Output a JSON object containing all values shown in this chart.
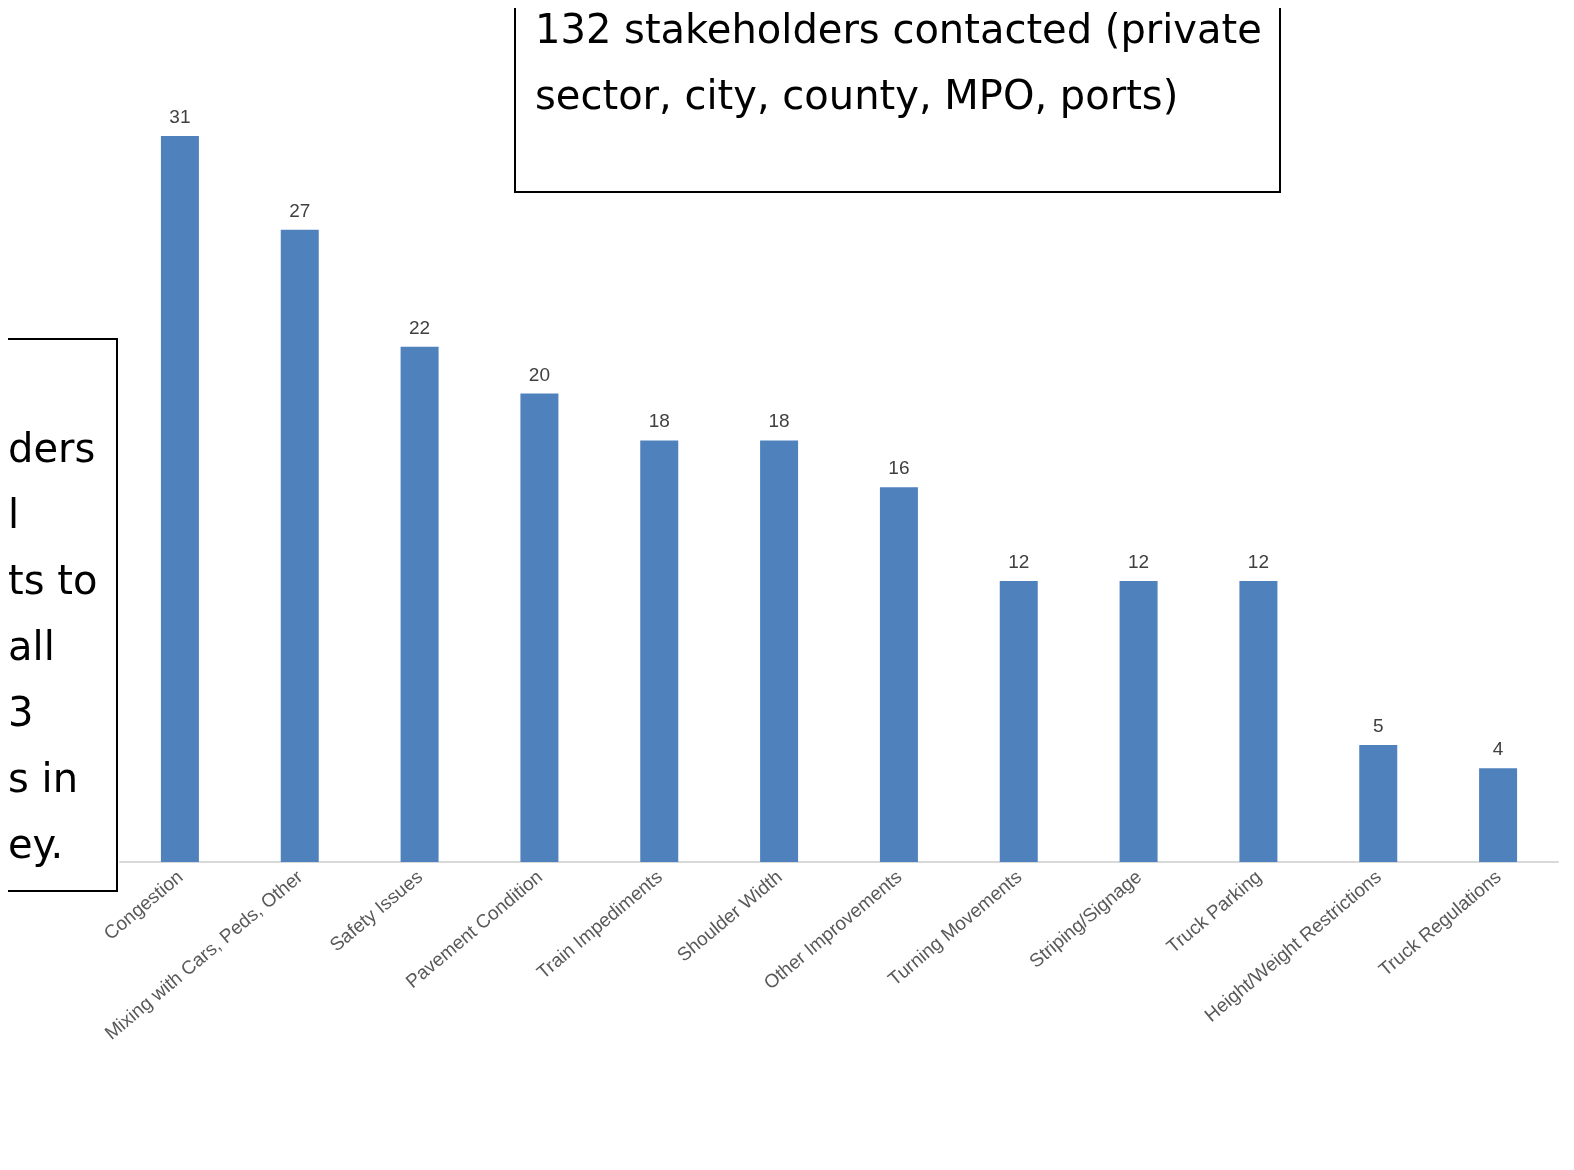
{
  "chart_data": {
    "type": "bar",
    "categories": [
      "Congestion",
      "Mixing with Cars, Peds, Other",
      "Safety Issues",
      "Pavement Condition",
      "Train Impediments",
      "Shoulder Width",
      "Other Improvements",
      "Turning Movements",
      "Striping/Signage",
      "Truck Parking",
      "Height/Weight Restrictions",
      "Truck Regulations"
    ],
    "values": [
      31,
      27,
      22,
      20,
      18,
      18,
      16,
      12,
      12,
      12,
      5,
      4
    ],
    "color": "#4f81bd",
    "data_labels": true,
    "grid": false,
    "annotations": [
      "132 stakeholders contacted (private\nsector, city, county, MPO, ports)",
      "ders\nl\nts to\nall\n3\ns in\ney."
    ]
  }
}
